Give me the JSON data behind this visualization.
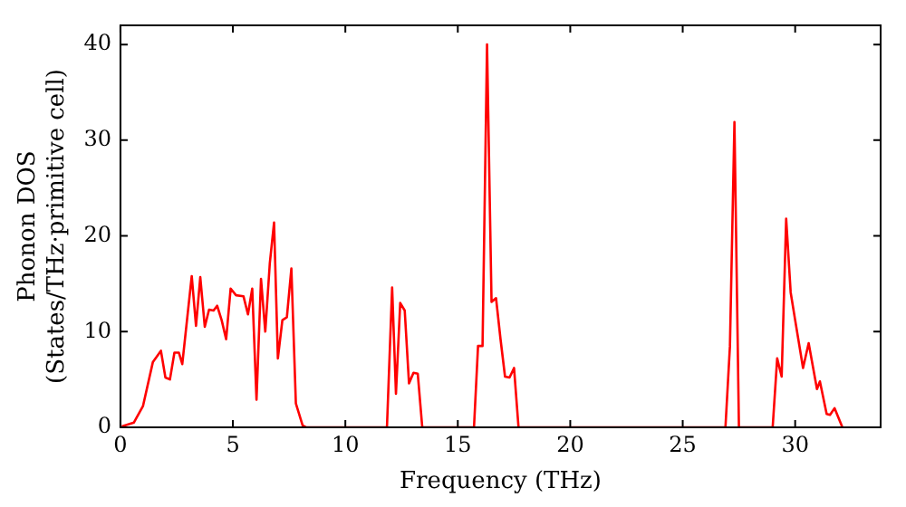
{
  "chart_data": {
    "type": "line",
    "xlabel": "Frequency (THz)",
    "ylabel": "Phonon DOS\n(States/THz·primitive cell)",
    "x": [
      0.06,
      0.6,
      1.0,
      1.44,
      1.8,
      2.0,
      2.2,
      2.4,
      2.6,
      2.75,
      3.17,
      3.36,
      3.55,
      3.75,
      3.94,
      4.14,
      4.3,
      4.5,
      4.7,
      4.9,
      5.14,
      5.47,
      5.67,
      5.86,
      6.05,
      6.25,
      6.44,
      6.64,
      6.83,
      7.0,
      7.2,
      7.4,
      7.6,
      7.8,
      8.1,
      8.25,
      11.85,
      12.08,
      12.25,
      12.44,
      12.64,
      12.83,
      13.03,
      13.22,
      13.42,
      15.72,
      15.9,
      16.1,
      16.3,
      16.5,
      16.7,
      16.9,
      17.1,
      17.3,
      17.5,
      17.7,
      26.9,
      27.1,
      27.3,
      27.5,
      29.0,
      29.2,
      29.4,
      29.6,
      29.8,
      30.0,
      30.35,
      30.6,
      30.97,
      31.1,
      31.4,
      31.55,
      31.75,
      32.1
    ],
    "series": [
      {
        "color": "#ff0000",
        "values": [
          0.1,
          0.5,
          2.2,
          6.8,
          8.0,
          5.2,
          5.0,
          7.8,
          7.8,
          6.6,
          15.8,
          10.6,
          15.7,
          10.5,
          12.3,
          12.2,
          12.7,
          11.2,
          9.2,
          14.5,
          13.8,
          13.7,
          11.8,
          14.5,
          2.9,
          15.5,
          10.0,
          17.1,
          21.4,
          7.2,
          11.2,
          11.5,
          16.6,
          2.5,
          0.2,
          0,
          0,
          14.6,
          3.5,
          13.0,
          12.2,
          4.6,
          5.7,
          5.6,
          0,
          0,
          8.5,
          8.5,
          40,
          13.1,
          13.5,
          9.2,
          5.3,
          5.2,
          6.2,
          0,
          0,
          8.5,
          31.9,
          0,
          0,
          7.2,
          5.3,
          21.8,
          14.1,
          11.2,
          6.2,
          8.8,
          4.0,
          4.8,
          1.4,
          1.3,
          2.0,
          0
        ]
      }
    ],
    "xlim": [
      0,
      33.8
    ],
    "xticks": [
      0,
      5,
      10,
      15,
      20,
      25,
      30
    ],
    "ylim": [
      0,
      42
    ],
    "yticks": [
      0,
      10,
      20,
      30,
      40
    ],
    "grid": false,
    "legend": false,
    "marker": "none",
    "line_style": "solid"
  }
}
